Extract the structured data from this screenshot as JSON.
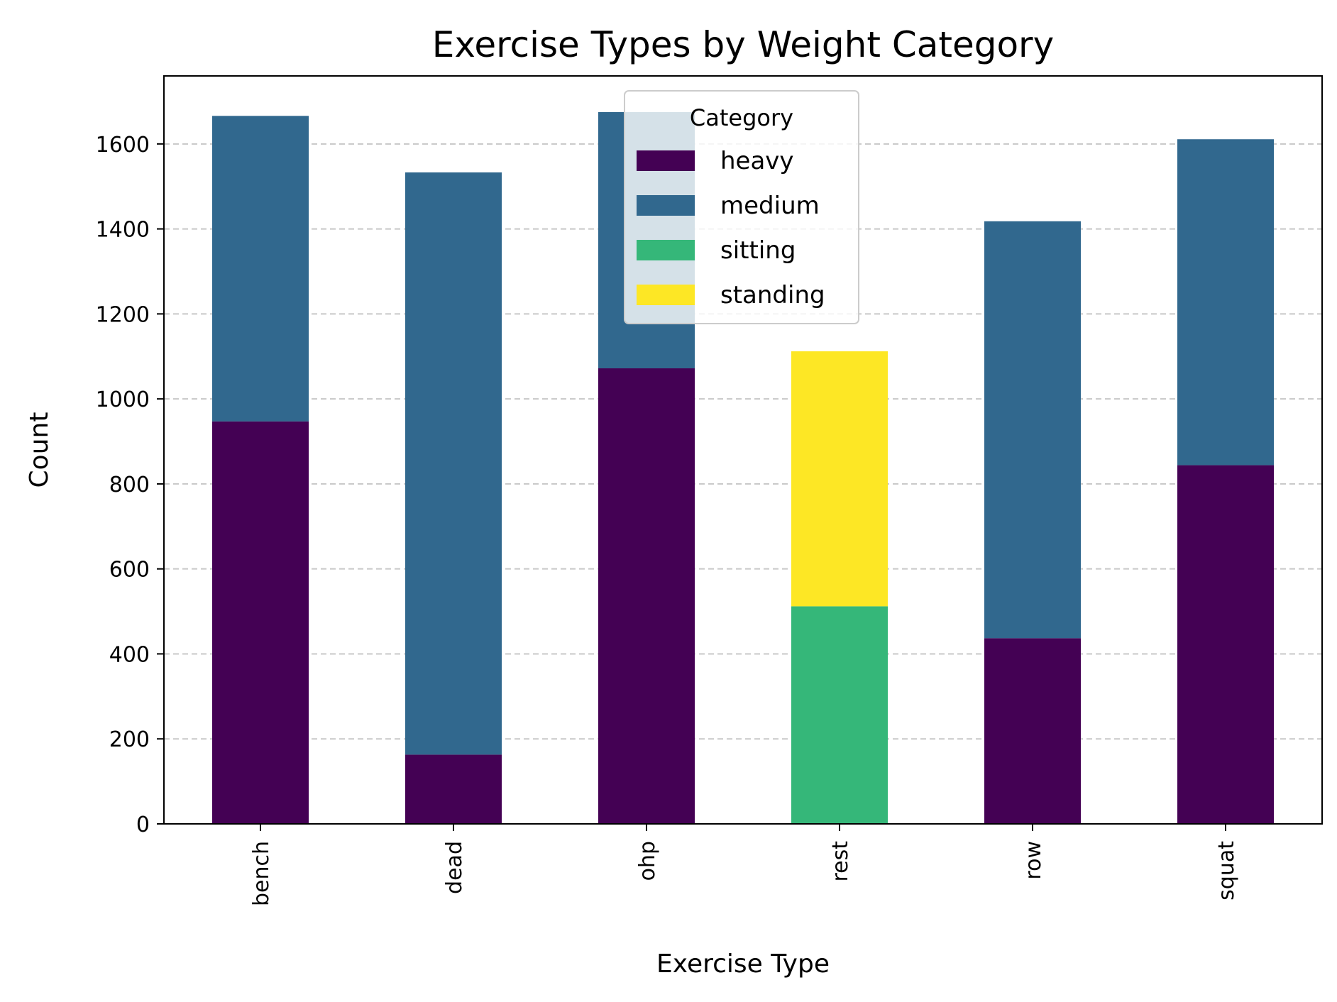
{
  "chart_data": {
    "type": "bar",
    "stacked": true,
    "title": "Exercise Types by Weight Category",
    "xlabel": "Exercise Type",
    "ylabel": "Count",
    "categories": [
      "bench",
      "dead",
      "ohp",
      "rest",
      "row",
      "squat"
    ],
    "series": [
      {
        "name": "heavy",
        "color": "#440154",
        "values": [
          947,
          163,
          1072,
          0,
          437,
          844
        ]
      },
      {
        "name": "medium",
        "color": "#31688e",
        "values": [
          719,
          1370,
          603,
          0,
          981,
          767
        ]
      },
      {
        "name": "sitting",
        "color": "#35b779",
        "values": [
          0,
          0,
          0,
          512,
          0,
          0
        ]
      },
      {
        "name": "standing",
        "color": "#fde725",
        "values": [
          0,
          0,
          0,
          600,
          0,
          0
        ]
      }
    ],
    "ylim": [
      0,
      1760
    ],
    "yticks": [
      0,
      200,
      400,
      600,
      800,
      1000,
      1200,
      1400,
      1600
    ],
    "grid": {
      "axis": "y",
      "style": "dashed",
      "color": "#c8c8c8"
    },
    "legend": {
      "title": "Category",
      "placement": "top-center"
    }
  }
}
